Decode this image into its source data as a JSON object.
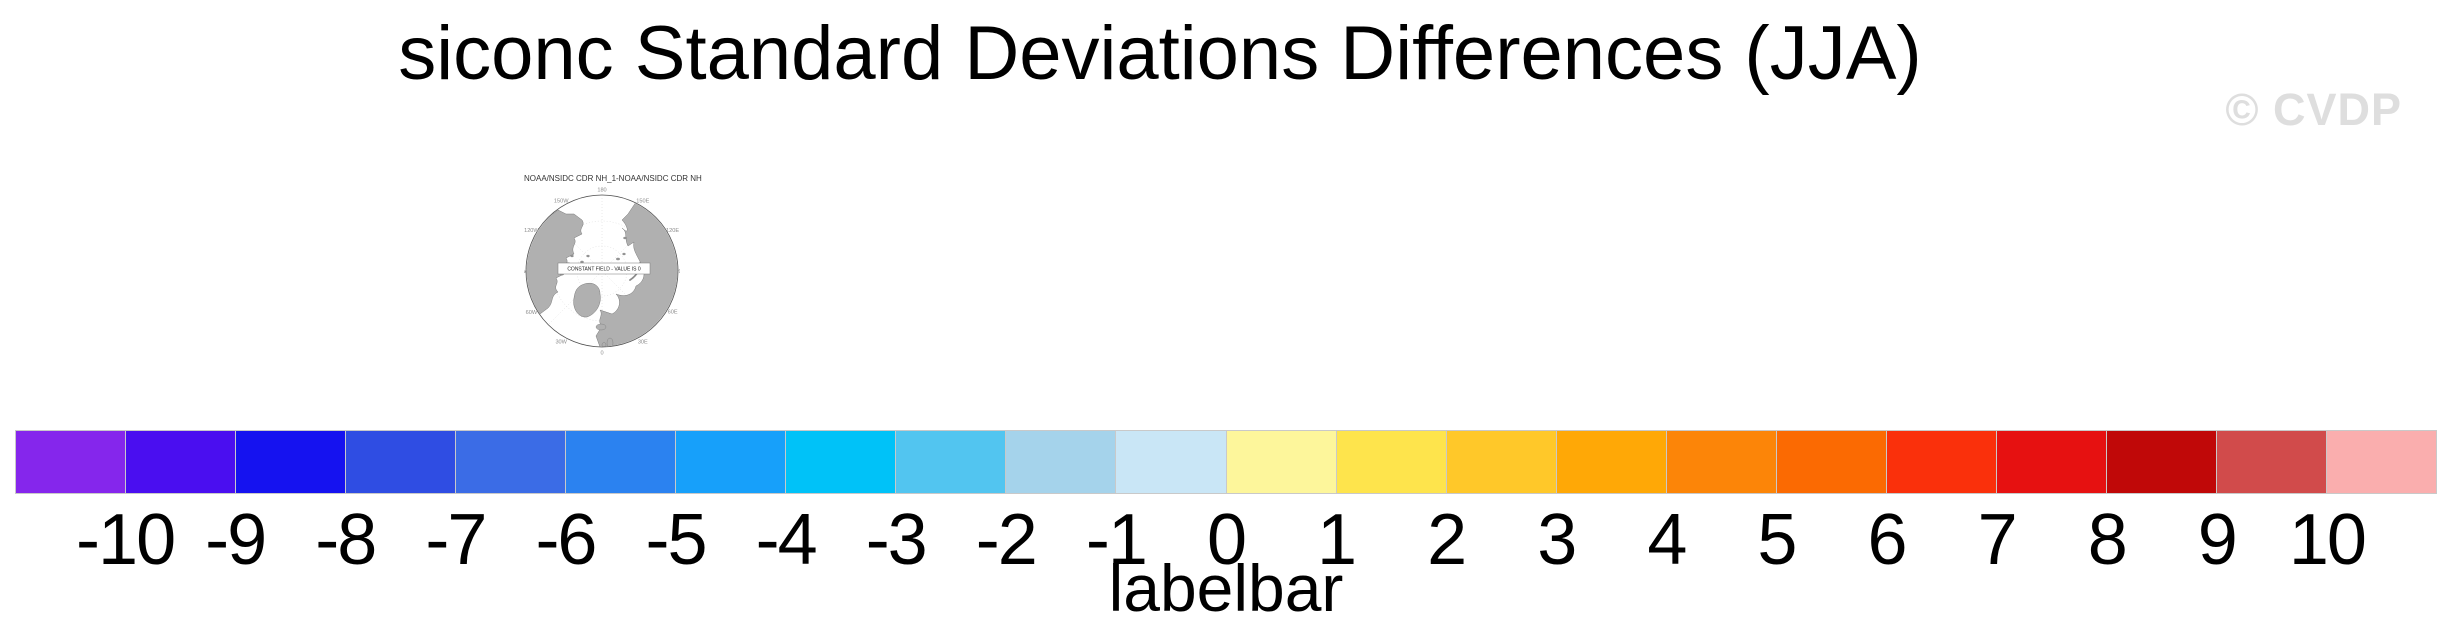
{
  "title": "siconc Standard Deviations Differences (JJA)",
  "watermark": "© CVDP",
  "map": {
    "subtitle": "NOAA/NSIDC CDR NH_1-NOAA/NSIDC CDR NH",
    "center_message": "CONSTANT FIELD - VALUE IS 0",
    "lon_labels": [
      "180",
      "150E",
      "120E",
      "90E",
      "60E",
      "30E",
      "0",
      "30W",
      "60W",
      "90W",
      "120W",
      "150W"
    ]
  },
  "labelbar": {
    "caption": "labelbar",
    "tick_labels": [
      "-10",
      "-9",
      "-8",
      "-7",
      "-6",
      "-5",
      "-4",
      "-3",
      "-2",
      "-1",
      "0",
      "1",
      "2",
      "3",
      "4",
      "5",
      "6",
      "7",
      "8",
      "9",
      "10"
    ],
    "colors": [
      "#8526EC",
      "#4A0EF0",
      "#1512F0",
      "#2F4DE3",
      "#3B6CE6",
      "#2B82F0",
      "#17A0FA",
      "#00C2F8",
      "#52C5F0",
      "#A5D3EB",
      "#C9E6F6",
      "#FDF69B",
      "#FEE44C",
      "#FFC829",
      "#FFA806",
      "#FC8508",
      "#FB6A02",
      "#FA300B",
      "#E61111",
      "#C00808",
      "#D14B4B",
      "#FAAEAE"
    ]
  },
  "chart_data": {
    "type": "heatmap",
    "title": "siconc Standard Deviations Differences (JJA)",
    "panel_title": "NOAA/NSIDC CDR NH_1-NOAA/NSIDC CDR NH",
    "annotation": "CONSTANT FIELD - VALUE IS 0",
    "colorbar_label": "labelbar",
    "levels": [
      -10,
      -9,
      -8,
      -7,
      -6,
      -5,
      -4,
      -3,
      -2,
      -1,
      0,
      1,
      2,
      3,
      4,
      5,
      6,
      7,
      8,
      9,
      10
    ],
    "colors": [
      "#8526EC",
      "#4A0EF0",
      "#1512F0",
      "#2F4DE3",
      "#3B6CE6",
      "#2B82F0",
      "#17A0FA",
      "#00C2F8",
      "#52C5F0",
      "#A5D3EB",
      "#C9E6F6",
      "#FDF69B",
      "#FEE44C",
      "#FFC829",
      "#FFA806",
      "#FC8508",
      "#FB6A02",
      "#FA300B",
      "#E61111",
      "#C00808",
      "#D14B4B",
      "#FAAEAE"
    ],
    "projection": "northern-hemisphere polar stereographic",
    "legend_position": "bottom",
    "watermark": "© CVDP"
  }
}
